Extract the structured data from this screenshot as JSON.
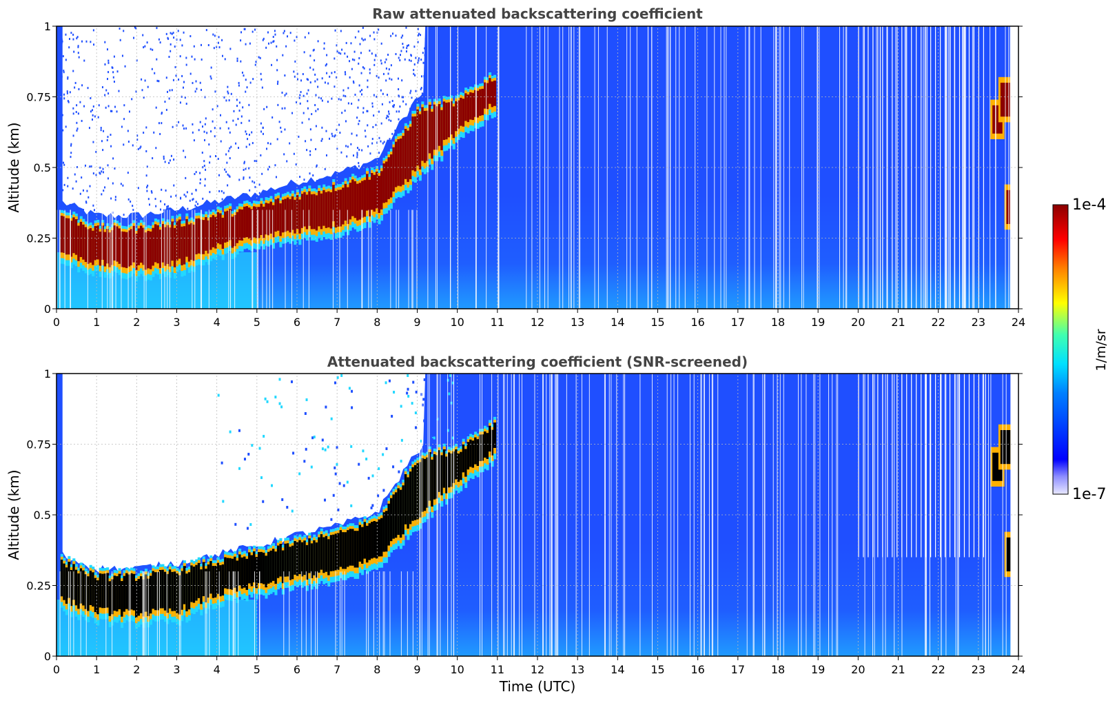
{
  "chart_data": [
    {
      "type": "heatmap",
      "title": "Raw attenuated backscattering coefficient",
      "ylabel": "Altitude (km)",
      "xlabel": "",
      "xlim": [
        0,
        24
      ],
      "ylim": [
        0,
        1
      ],
      "x_ticks": [
        "0",
        "1",
        "2",
        "3",
        "4",
        "5",
        "6",
        "7",
        "8",
        "9",
        "10",
        "11",
        "12",
        "13",
        "14",
        "15",
        "16",
        "17",
        "18",
        "19",
        "20",
        "21",
        "22",
        "23",
        "24"
      ],
      "y_ticks": [
        "0",
        "0.25",
        "0.5",
        "0.75",
        "1"
      ],
      "grid": true,
      "cloud_layer_base_km": [
        {
          "t": 0.1,
          "base": 0.2,
          "top": 0.33
        },
        {
          "t": 1.0,
          "base": 0.16,
          "top": 0.28
        },
        {
          "t": 2.0,
          "base": 0.15,
          "top": 0.28
        },
        {
          "t": 3.0,
          "base": 0.16,
          "top": 0.3
        },
        {
          "t": 4.0,
          "base": 0.22,
          "top": 0.33
        },
        {
          "t": 5.0,
          "base": 0.25,
          "top": 0.36
        },
        {
          "t": 6.0,
          "base": 0.28,
          "top": 0.4
        },
        {
          "t": 7.0,
          "base": 0.3,
          "top": 0.43
        },
        {
          "t": 8.0,
          "base": 0.35,
          "top": 0.48
        },
        {
          "t": 9.0,
          "base": 0.5,
          "top": 0.7
        },
        {
          "t": 10.0,
          "base": 0.63,
          "top": 0.73
        },
        {
          "t": 10.9,
          "base": 0.73,
          "top": 0.82
        }
      ]
    },
    {
      "type": "heatmap",
      "title": "Attenuated backscattering coefficient (SNR-screened)",
      "ylabel": "Altitude (km)",
      "xlabel": "Time (UTC)",
      "xlim": [
        0,
        24
      ],
      "ylim": [
        0,
        1
      ],
      "x_ticks": [
        "0",
        "1",
        "2",
        "3",
        "4",
        "5",
        "6",
        "7",
        "8",
        "9",
        "10",
        "11",
        "12",
        "13",
        "14",
        "15",
        "16",
        "17",
        "18",
        "19",
        "20",
        "21",
        "22",
        "23",
        "24"
      ],
      "y_ticks": [
        "0",
        "0.25",
        "0.5",
        "0.75",
        "1"
      ],
      "grid": true
    }
  ],
  "colorbar": {
    "max_label": "1e-4",
    "min_label": "1e-7",
    "unit": "1/m/sr",
    "colormap": "jet"
  },
  "colors": {
    "background_blue": "#1f4fff",
    "low_cyan": "#22d8ff",
    "cloud_red": "#8b0000",
    "cloud_black": "#000000",
    "title_gray": "#444444"
  }
}
